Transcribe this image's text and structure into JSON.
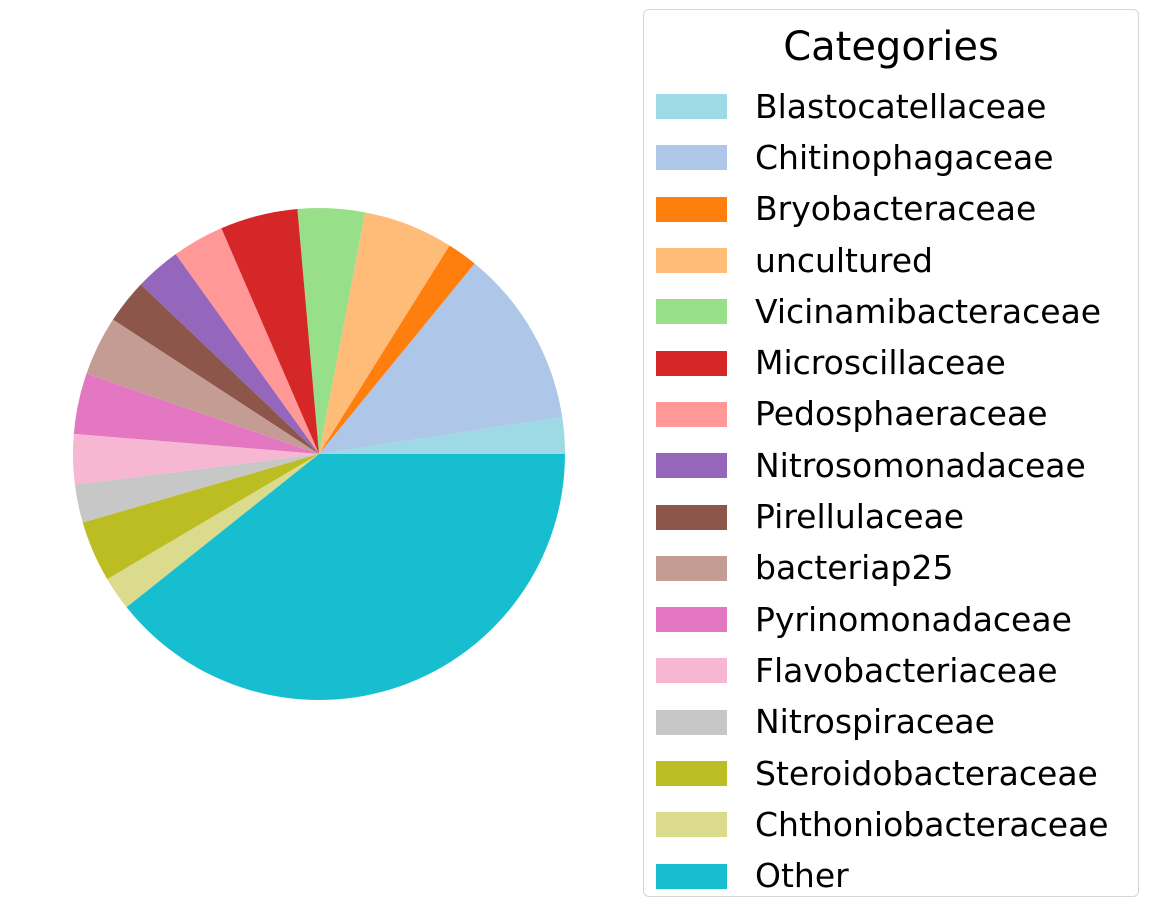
{
  "chart_data": {
    "type": "pie",
    "start_angle_deg": 0,
    "direction": "counterclockwise",
    "legend_title": "Categories",
    "legend_position": "right",
    "slices": [
      {
        "label": "Blastocatellaceae",
        "value": 2.4,
        "color": "#9edae5"
      },
      {
        "label": "Chitinophagaceae",
        "value": 11.7,
        "color": "#aec7e8"
      },
      {
        "label": "Bryobacteraceae",
        "value": 2.0,
        "color": "#ff7f0e"
      },
      {
        "label": "uncultured",
        "value": 5.9,
        "color": "#ffbb78"
      },
      {
        "label": "Vicinamibacteraceae",
        "value": 4.4,
        "color": "#98df8a"
      },
      {
        "label": "Microscillaceae",
        "value": 5.1,
        "color": "#d62728"
      },
      {
        "label": "Pedosphaeraceae",
        "value": 3.4,
        "color": "#ff9896"
      },
      {
        "label": "Nitrosomonadaceae",
        "value": 3.0,
        "color": "#9467bd"
      },
      {
        "label": "Pirellulaceae",
        "value": 2.9,
        "color": "#8c564b"
      },
      {
        "label": "bacteriap25",
        "value": 3.9,
        "color": "#c49c94"
      },
      {
        "label": "Pyrinomonadaceae",
        "value": 4.0,
        "color": "#e377c2"
      },
      {
        "label": "Flavobacteriaceae",
        "value": 3.3,
        "color": "#f7b6d2"
      },
      {
        "label": "Nitrospiraceae",
        "value": 2.5,
        "color": "#c7c7c7"
      },
      {
        "label": "Steroidobacteraceae",
        "value": 4.0,
        "color": "#bcbd22"
      },
      {
        "label": "Chthoniobacteraceae",
        "value": 2.2,
        "color": "#dbdb8d"
      },
      {
        "label": "Other",
        "value": 39.3,
        "color": "#17becf"
      }
    ]
  }
}
